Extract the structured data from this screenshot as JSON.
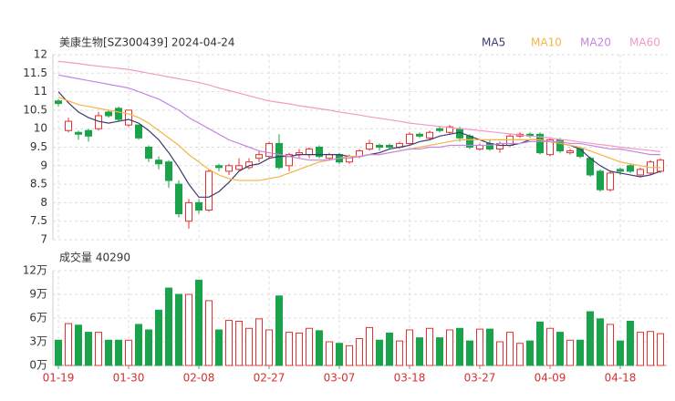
{
  "chart_data": [
    {
      "type": "candlestick",
      "title": "美康生物[SZ300439] 2024-04-24",
      "up_color": "#e83030",
      "down_color": "#1aa34a",
      "open": [
        10.75,
        9.95,
        9.9,
        9.95,
        10.0,
        10.45,
        10.55,
        10.1,
        10.1,
        9.5,
        9.15,
        9.1,
        8.5,
        7.5,
        8.0,
        7.8,
        9.0,
        8.85,
        8.9,
        8.95,
        9.2,
        9.25,
        9.6,
        9.0,
        9.3,
        9.3,
        9.5,
        9.2,
        9.3,
        9.1,
        9.25,
        9.45,
        9.55,
        9.55,
        9.5,
        9.6,
        9.85,
        9.75,
        10.0,
        9.9,
        10.0,
        9.8,
        9.45,
        9.6,
        9.45,
        9.55,
        9.8,
        9.85,
        9.85,
        9.3,
        9.7,
        9.35,
        9.45,
        9.2,
        8.85,
        8.35,
        8.9,
        9.0,
        8.75,
        8.8,
        8.85
      ],
      "high": [
        10.8,
        10.3,
        9.95,
        10.0,
        10.45,
        10.5,
        10.6,
        10.5,
        10.1,
        9.55,
        9.25,
        9.15,
        8.6,
        8.1,
        8.1,
        8.9,
        9.05,
        9.05,
        9.2,
        9.2,
        9.4,
        9.65,
        9.85,
        9.35,
        9.45,
        9.5,
        9.55,
        9.35,
        9.35,
        9.3,
        9.45,
        9.7,
        9.6,
        9.6,
        9.65,
        9.9,
        9.9,
        9.95,
        10.05,
        10.1,
        10.05,
        9.85,
        9.6,
        9.7,
        9.65,
        9.85,
        9.9,
        9.9,
        9.9,
        9.75,
        9.75,
        9.45,
        9.5,
        9.25,
        8.9,
        8.85,
        8.95,
        9.05,
        8.95,
        9.15,
        9.2
      ],
      "low": [
        10.6,
        9.9,
        9.7,
        9.65,
        9.95,
        10.3,
        10.2,
        10.05,
        9.7,
        9.1,
        8.9,
        8.4,
        7.6,
        7.3,
        7.7,
        7.75,
        8.85,
        8.75,
        8.85,
        8.9,
        9.1,
        9.2,
        8.9,
        8.85,
        9.2,
        9.2,
        9.2,
        9.15,
        9.05,
        9.05,
        9.2,
        9.4,
        9.4,
        9.45,
        9.45,
        9.55,
        9.75,
        9.7,
        9.9,
        9.85,
        9.65,
        9.45,
        9.4,
        9.4,
        9.35,
        9.5,
        9.75,
        9.75,
        9.3,
        9.25,
        9.35,
        9.3,
        9.2,
        8.7,
        8.3,
        8.3,
        8.75,
        8.8,
        8.7,
        8.75,
        8.8
      ],
      "close": [
        10.68,
        10.2,
        9.85,
        9.8,
        10.35,
        10.35,
        10.25,
        10.5,
        9.75,
        9.2,
        9.05,
        8.6,
        7.7,
        8.0,
        7.8,
        8.85,
        8.95,
        9.0,
        9.0,
        9.1,
        9.3,
        9.6,
        8.95,
        9.3,
        9.35,
        9.45,
        9.25,
        9.3,
        9.1,
        9.25,
        9.4,
        9.6,
        9.5,
        9.5,
        9.6,
        9.85,
        9.8,
        9.9,
        9.95,
        10.05,
        9.75,
        9.5,
        9.55,
        9.45,
        9.6,
        9.8,
        9.85,
        9.8,
        9.35,
        9.7,
        9.4,
        9.4,
        9.25,
        8.75,
        8.35,
        8.8,
        8.85,
        8.85,
        8.9,
        9.1,
        9.15
      ],
      "series": [
        {
          "name": "MA5",
          "color": "#3b3b6b",
          "values": [
            11.0,
            10.7,
            10.45,
            10.3,
            10.2,
            10.15,
            10.2,
            10.25,
            10.15,
            9.95,
            9.7,
            9.35,
            8.95,
            8.5,
            8.15,
            8.15,
            8.3,
            8.55,
            8.85,
            9.0,
            9.05,
            9.2,
            9.25,
            9.25,
            9.3,
            9.3,
            9.3,
            9.3,
            9.3,
            9.25,
            9.25,
            9.3,
            9.35,
            9.45,
            9.5,
            9.55,
            9.65,
            9.7,
            9.8,
            9.85,
            9.9,
            9.8,
            9.7,
            9.6,
            9.55,
            9.55,
            9.6,
            9.7,
            9.7,
            9.65,
            9.6,
            9.55,
            9.45,
            9.2,
            9.0,
            8.85,
            8.8,
            8.75,
            8.7,
            8.75,
            8.85
          ]
        },
        {
          "name": "MA10",
          "color": "#f5b445",
          "values": [
            10.85,
            10.75,
            10.65,
            10.6,
            10.55,
            10.5,
            10.45,
            10.4,
            10.3,
            10.15,
            9.95,
            9.75,
            9.55,
            9.3,
            9.1,
            8.9,
            8.75,
            8.65,
            8.6,
            8.6,
            8.6,
            8.65,
            8.7,
            8.8,
            8.9,
            9.0,
            9.1,
            9.15,
            9.2,
            9.25,
            9.25,
            9.3,
            9.3,
            9.35,
            9.4,
            9.45,
            9.5,
            9.55,
            9.6,
            9.65,
            9.7,
            9.7,
            9.7,
            9.7,
            9.7,
            9.7,
            9.7,
            9.7,
            9.7,
            9.65,
            9.6,
            9.55,
            9.5,
            9.4,
            9.3,
            9.2,
            9.1,
            9.05,
            9.0,
            8.95,
            8.95
          ]
        },
        {
          "name": "MA20",
          "color": "#c585e0",
          "values": [
            11.45,
            11.4,
            11.35,
            11.3,
            11.25,
            11.2,
            11.15,
            11.1,
            11.0,
            10.9,
            10.8,
            10.65,
            10.5,
            10.3,
            10.15,
            10.0,
            9.85,
            9.7,
            9.6,
            9.5,
            9.4,
            9.35,
            9.3,
            9.25,
            9.2,
            9.15,
            9.15,
            9.15,
            9.2,
            9.2,
            9.25,
            9.3,
            9.3,
            9.35,
            9.4,
            9.45,
            9.45,
            9.5,
            9.5,
            9.55,
            9.55,
            9.55,
            9.55,
            9.55,
            9.6,
            9.6,
            9.6,
            9.65,
            9.65,
            9.65,
            9.65,
            9.6,
            9.6,
            9.55,
            9.5,
            9.45,
            9.45,
            9.4,
            9.35,
            9.3,
            9.3
          ]
        },
        {
          "name": "MA60",
          "color": "#f29ac6",
          "values": [
            11.82,
            11.79,
            11.76,
            11.72,
            11.69,
            11.66,
            11.63,
            11.6,
            11.55,
            11.5,
            11.45,
            11.4,
            11.35,
            11.3,
            11.25,
            11.18,
            11.1,
            11.03,
            10.96,
            10.89,
            10.82,
            10.75,
            10.71,
            10.67,
            10.62,
            10.58,
            10.54,
            10.5,
            10.45,
            10.41,
            10.37,
            10.32,
            10.28,
            10.24,
            10.2,
            10.15,
            10.12,
            10.09,
            10.06,
            10.03,
            10.0,
            9.98,
            9.95,
            9.92,
            9.89,
            9.86,
            9.83,
            9.8,
            9.78,
            9.75,
            9.71,
            9.68,
            9.64,
            9.61,
            9.57,
            9.54,
            9.5,
            9.47,
            9.44,
            9.41,
            9.38
          ]
        }
      ],
      "ylim": [
        7,
        12
      ],
      "yticks": [
        7,
        7.5,
        8,
        8.5,
        9,
        9.5,
        10,
        10.5,
        11,
        11.5,
        12
      ],
      "grid": true
    },
    {
      "type": "bar",
      "title": "成交量 40290",
      "categories": [
        "01-19",
        null,
        null,
        null,
        null,
        null,
        null,
        "01-30",
        null,
        null,
        null,
        null,
        null,
        null,
        "02-08",
        null,
        null,
        null,
        null,
        null,
        null,
        "02-27",
        null,
        null,
        null,
        null,
        null,
        null,
        "03-07",
        null,
        null,
        null,
        null,
        null,
        null,
        "03-18",
        null,
        null,
        null,
        null,
        null,
        null,
        "03-27",
        null,
        null,
        null,
        null,
        null,
        null,
        "04-09",
        null,
        null,
        null,
        null,
        null,
        null,
        "04-18",
        null,
        null,
        null,
        null
      ],
      "values": [
        3.2,
        5.3,
        5.1,
        4.2,
        4.2,
        3.2,
        3.2,
        3.2,
        5.2,
        4.5,
        7.0,
        9.8,
        9.0,
        9.0,
        10.8,
        8.2,
        4.5,
        5.7,
        5.6,
        4.7,
        5.9,
        4.5,
        8.8,
        4.2,
        4.1,
        4.7,
        4.4,
        3.0,
        2.8,
        2.5,
        3.4,
        4.8,
        3.2,
        4.1,
        3.1,
        4.5,
        3.5,
        4.7,
        3.5,
        4.5,
        4.7,
        3.1,
        4.6,
        4.6,
        3.0,
        4.2,
        2.8,
        3.1,
        5.5,
        4.7,
        4.2,
        3.2,
        3.2,
        6.8,
        5.9,
        5.2,
        3.1,
        5.6,
        4.2,
        4.3,
        4.03
      ],
      "ylim": [
        0,
        12
      ],
      "yticks": [
        {
          "value": 0,
          "label": "0万"
        },
        {
          "value": 3,
          "label": "3万"
        },
        {
          "value": 6,
          "label": "6万"
        },
        {
          "value": 9,
          "label": "9万"
        },
        {
          "value": 12,
          "label": "12万"
        }
      ],
      "grid": true
    }
  ]
}
